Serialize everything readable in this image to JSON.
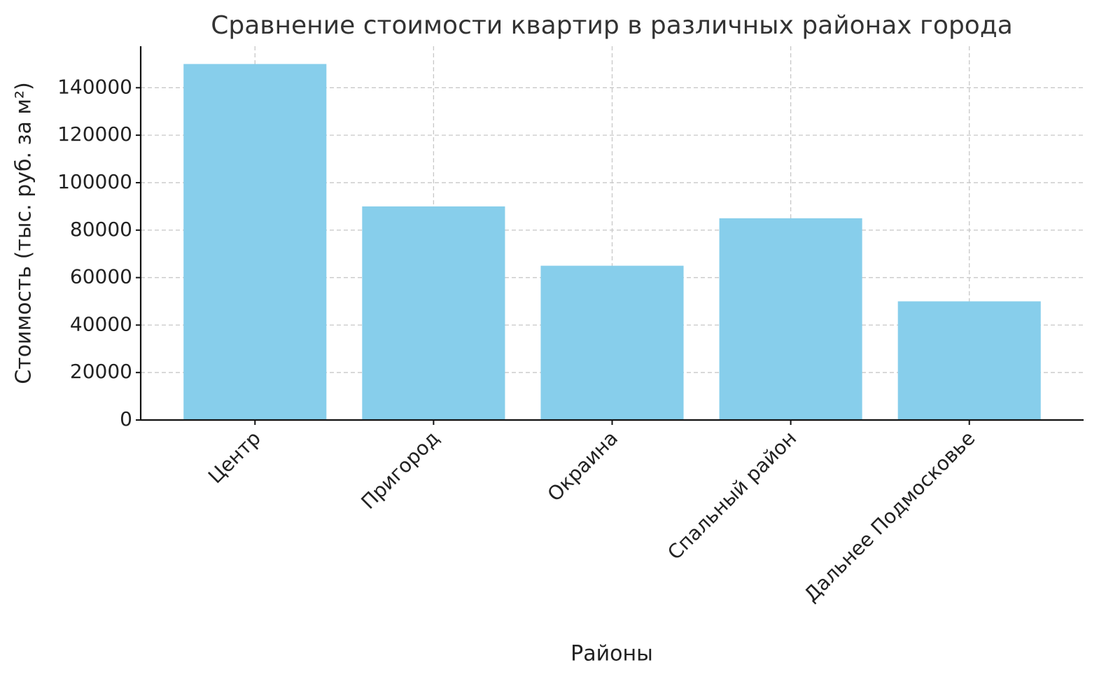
{
  "chart_data": {
    "type": "bar",
    "title": "Сравнение стоимости квартир в различных районах города",
    "x_label": "Районы",
    "y_label": "Стоимость (тыс. руб. за м²)",
    "categories": [
      "Центр",
      "Пригород",
      "Окраина",
      "Спальный район",
      "Дальнее Подмосковье"
    ],
    "values": [
      150000,
      90000,
      65000,
      85000,
      50000
    ],
    "color": "#87ceeb",
    "ylim": [
      0,
      157500
    ],
    "yticks": [
      0,
      20000,
      40000,
      60000,
      80000,
      100000,
      120000,
      140000
    ],
    "grid": true
  }
}
